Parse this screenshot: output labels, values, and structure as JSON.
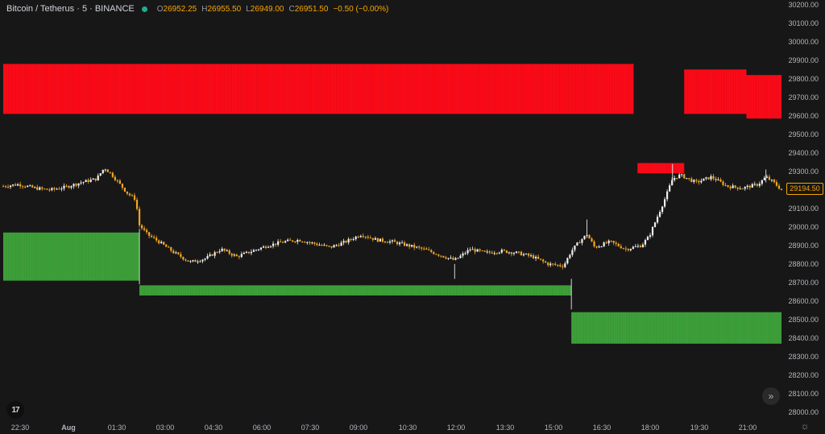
{
  "header": {
    "symbol": "Bitcoin / Tetherus · 5 · BINANCE",
    "open_key": "O",
    "open": "26952.25",
    "high_key": "H",
    "high": "26955.50",
    "low_key": "L",
    "low": "26949.00",
    "close_key": "C",
    "close": "26951.50",
    "change": "−0.50 (−0.00%)"
  },
  "price_tag": "29194.50",
  "colors": {
    "background": "#171717",
    "candle_up": "#f0f0f0",
    "candle_down": "#f5a623",
    "supply_zone": "#ff0a18",
    "demand_zone": "#3ea23a",
    "price_tag": "#f7a600"
  },
  "icons": {
    "logo": "tradingview-logo-icon",
    "scroll": "double-chevron-right-icon",
    "settings": "gear-icon"
  },
  "logo_text": "17",
  "scroll_glyph": "»",
  "gear_glyph": "☼",
  "chart_data": {
    "type": "candlestick",
    "y_ticks": [
      "30200.00",
      "30100.00",
      "30000.00",
      "29900.00",
      "29800.00",
      "29700.00",
      "29600.00",
      "29500.00",
      "29400.00",
      "29300.00",
      "29200.00",
      "29100.00",
      "29000.00",
      "28900.00",
      "28800.00",
      "28700.00",
      "28600.00",
      "28500.00",
      "28400.00",
      "28300.00",
      "28200.00",
      "28100.00",
      "28000.00"
    ],
    "ylim": [
      27965,
      30225
    ],
    "x_ticks": [
      "22:30",
      "Aug",
      "01:30",
      "03:00",
      "04:30",
      "06:00",
      "07:30",
      "09:00",
      "10:30",
      "12:00",
      "13:30",
      "15:00",
      "16:30",
      "18:00",
      "19:30",
      "21:00"
    ],
    "x_bold": [
      "Aug"
    ],
    "price_path": [
      [
        0,
        29220
      ],
      [
        4,
        29230
      ],
      [
        8,
        29210
      ],
      [
        12,
        29200
      ],
      [
        16,
        29215
      ],
      [
        20,
        29240
      ],
      [
        24,
        29260
      ],
      [
        26,
        29320
      ],
      [
        28,
        29280
      ],
      [
        30,
        29230
      ],
      [
        32,
        29180
      ],
      [
        34,
        29150
      ],
      [
        35,
        29010
      ],
      [
        37,
        28960
      ],
      [
        40,
        28920
      ],
      [
        44,
        28860
      ],
      [
        48,
        28810
      ],
      [
        52,
        28830
      ],
      [
        56,
        28880
      ],
      [
        60,
        28840
      ],
      [
        64,
        28870
      ],
      [
        68,
        28900
      ],
      [
        72,
        28920
      ],
      [
        76,
        28930
      ],
      [
        80,
        28910
      ],
      [
        84,
        28890
      ],
      [
        88,
        28920
      ],
      [
        92,
        28960
      ],
      [
        96,
        28930
      ],
      [
        100,
        28920
      ],
      [
        104,
        28900
      ],
      [
        108,
        28880
      ],
      [
        112,
        28850
      ],
      [
        116,
        28820
      ],
      [
        120,
        28880
      ],
      [
        124,
        28860
      ],
      [
        128,
        28870
      ],
      [
        132,
        28860
      ],
      [
        136,
        28840
      ],
      [
        140,
        28800
      ],
      [
        144,
        28790
      ],
      [
        146,
        28870
      ],
      [
        148,
        28920
      ],
      [
        150,
        28960
      ],
      [
        152,
        28890
      ],
      [
        156,
        28920
      ],
      [
        160,
        28880
      ],
      [
        164,
        28900
      ],
      [
        166,
        28950
      ],
      [
        168,
        29050
      ],
      [
        170,
        29150
      ],
      [
        172,
        29260
      ],
      [
        174,
        29280
      ],
      [
        178,
        29240
      ],
      [
        182,
        29270
      ],
      [
        186,
        29220
      ],
      [
        190,
        29210
      ],
      [
        194,
        29230
      ],
      [
        196,
        29270
      ],
      [
        198,
        29240
      ],
      [
        200,
        29200
      ]
    ],
    "supply_zones": [
      {
        "x0": 0,
        "x1": 162,
        "y0": 29610,
        "y1": 29880
      },
      {
        "x0": 175,
        "x1": 191,
        "y0": 29610,
        "y1": 29850
      },
      {
        "x0": 191,
        "x1": 200,
        "y0": 29585,
        "y1": 29820
      },
      {
        "x0": 163,
        "x1": 175,
        "y0": 29290,
        "y1": 29345
      }
    ],
    "demand_zones": [
      {
        "x0": 0,
        "x1": 35,
        "y0": 28710,
        "y1": 28970
      },
      {
        "x0": 35,
        "x1": 146,
        "y0": 28630,
        "y1": 28685
      },
      {
        "x0": 146,
        "x1": 200,
        "y0": 28370,
        "y1": 28540
      }
    ]
  }
}
